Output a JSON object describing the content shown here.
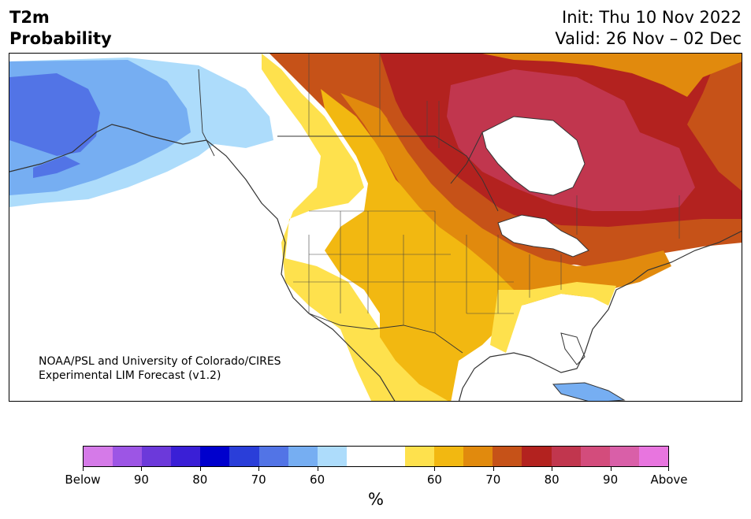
{
  "header": {
    "title_line1": "T2m",
    "title_line2": "Probability",
    "init": "Init: Thu 10 Nov 2022",
    "valid": "Valid: 26 Nov – 02 Dec"
  },
  "map": {
    "credit_line1": "NOAA/PSL and University of Colorado/CIRES",
    "credit_line2": "Experimental LIM Forecast (v1.2)",
    "regions": [
      {
        "name": "alaska-interior-below-70",
        "category": "below-70"
      },
      {
        "name": "alaska-west-below-80",
        "category": "below-80"
      },
      {
        "name": "alaska-east-below-60",
        "category": "below-60"
      },
      {
        "name": "yukon-neutral",
        "category": "neutral"
      },
      {
        "name": "western-us-above-60",
        "category": "above-60"
      },
      {
        "name": "plains-above-70",
        "category": "above-70"
      },
      {
        "name": "northern-plains-above-80",
        "category": "above-80"
      },
      {
        "name": "canada-above-90",
        "category": "above-90"
      },
      {
        "name": "hudson-bay-above-90",
        "category": "above-90"
      },
      {
        "name": "southeast-us-neutral",
        "category": "neutral"
      },
      {
        "name": "northeast-above-70",
        "category": "above-70"
      }
    ]
  },
  "colorbar": {
    "unit_label": "%",
    "colors": [
      "#d57ae8",
      "#9d55e5",
      "#6c39da",
      "#3a1fd6",
      "#0000cd",
      "#2a3ed9",
      "#5274e6",
      "#76aef2",
      "#addcfb",
      "#ffffff",
      "#ffffff",
      "#fee14d",
      "#f2b811",
      "#e18a0d",
      "#c65218",
      "#b3221f",
      "#c1364e",
      "#d34c7c",
      "#d95fa8",
      "#e875df"
    ],
    "tick_labels": [
      "Below",
      "90",
      "80",
      "70",
      "60",
      "60",
      "70",
      "80",
      "90",
      "Above"
    ]
  },
  "colors": {
    "below_80": "#5274e6",
    "below_70": "#76aef2",
    "below_60": "#addcfb",
    "above_60": "#fee14d",
    "above_65": "#f2b811",
    "above_70": "#e18a0d",
    "above_75": "#c65218",
    "above_80": "#b3221f",
    "above_85": "#c1364e"
  }
}
